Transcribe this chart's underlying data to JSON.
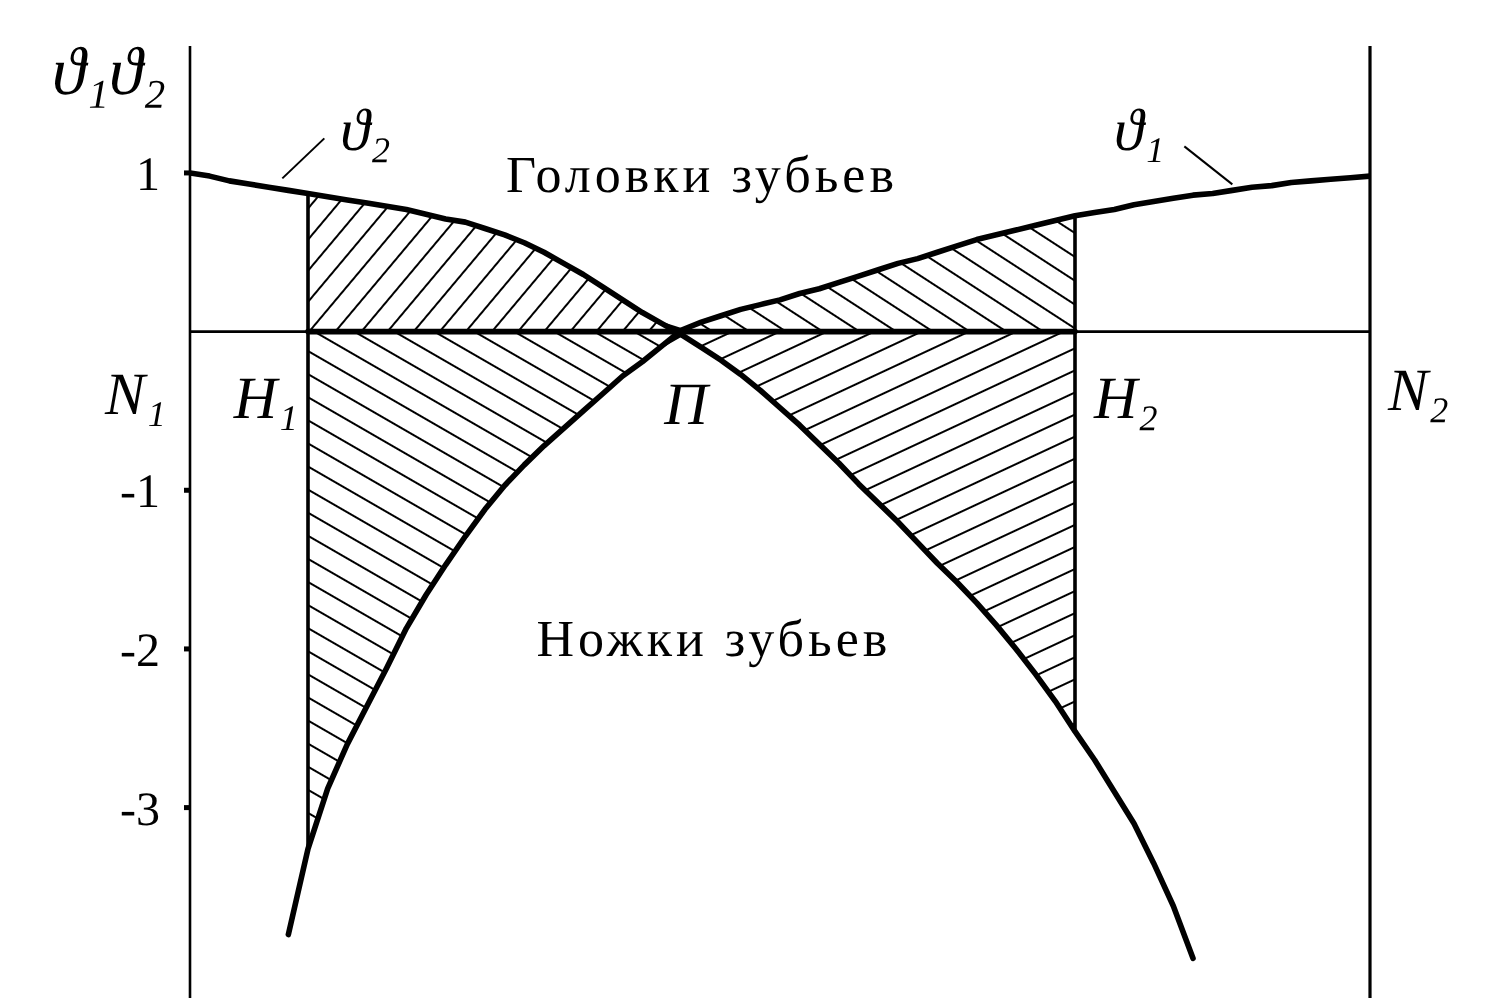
{
  "chart_data": {
    "type": "line",
    "ylabel": "ϑ₁ϑ₂",
    "categories": [
      null,
      null,
      null,
      null,
      null,
      null,
      null,
      null,
      null,
      null,
      null,
      null,
      null,
      null,
      null,
      null,
      null,
      null,
      null,
      null,
      null,
      null,
      null,
      null,
      null,
      null,
      null,
      null,
      null,
      null,
      null,
      null,
      null,
      null,
      null,
      null,
      null,
      null,
      null,
      null,
      null,
      null,
      null,
      null,
      null,
      null,
      null,
      null,
      null,
      null,
      null,
      null,
      null,
      null,
      null,
      null,
      null,
      null,
      null,
      null,
      null
    ],
    "series": [
      {
        "name": "ϑ₂",
        "color": "#000000",
        "values": [
          1.0,
          0.98,
          0.95,
          0.93,
          0.91,
          0.89,
          0.87,
          0.85,
          0.83,
          0.81,
          0.79,
          0.77,
          0.74,
          0.71,
          0.69,
          0.65,
          0.61,
          0.56,
          0.5,
          0.43,
          0.36,
          0.28,
          0.2,
          0.12,
          0.05,
          -0.02,
          -0.1,
          -0.18,
          -0.27,
          -0.37,
          -0.48,
          -0.59,
          -0.71,
          -0.83,
          -0.96,
          -1.08,
          -1.2,
          -1.33,
          -1.46,
          -1.58,
          -1.71,
          -1.85,
          -2.0,
          -2.16,
          -2.33,
          -2.52,
          -2.7,
          -2.9,
          -3.1,
          -3.35,
          -3.62,
          -3.95,
          null,
          null,
          null,
          null,
          null,
          null,
          null,
          null,
          null
        ]
      },
      {
        "name": "ϑ₁",
        "color": "#000000",
        "values": [
          null,
          null,
          null,
          null,
          null,
          -3.8,
          -3.26,
          -2.88,
          -2.6,
          -2.36,
          -2.12,
          -1.87,
          -1.66,
          -1.47,
          -1.29,
          -1.12,
          -0.97,
          -0.84,
          -0.72,
          -0.61,
          -0.5,
          -0.39,
          -0.28,
          -0.19,
          -0.09,
          0.01,
          0.06,
          0.1,
          0.14,
          0.17,
          0.2,
          0.24,
          0.27,
          0.31,
          0.35,
          0.39,
          0.43,
          0.46,
          0.5,
          0.54,
          0.58,
          0.61,
          0.64,
          0.67,
          0.7,
          0.73,
          0.75,
          0.77,
          0.8,
          0.82,
          0.84,
          0.86,
          0.87,
          0.89,
          0.91,
          0.92,
          0.94,
          0.95,
          0.96,
          0.97,
          0.98
        ]
      },
      {
        "color": "#000000",
        "values": [
          null,
          null,
          null,
          null,
          null,
          null,
          0,
          0,
          0,
          0,
          0,
          0,
          0,
          0,
          0,
          0,
          0,
          0,
          0,
          0,
          0,
          0,
          0,
          0,
          0,
          0,
          0,
          0,
          0,
          0,
          0,
          0,
          0,
          0,
          0,
          0,
          0,
          0,
          0,
          0,
          0,
          0,
          0,
          0,
          0,
          0,
          null,
          null,
          null,
          null,
          null,
          null,
          null,
          null,
          null,
          null,
          null,
          null,
          null,
          null,
          null
        ]
      }
    ],
    "ylim": [
      -4.2,
      1.8
    ],
    "yticks": [
      1,
      -1,
      -2,
      -3
    ],
    "tick_labels": "y",
    "ref_lines": [
      {
        "axis": "y",
        "value": 0
      }
    ],
    "annotations": [
      "Головки зубьев",
      "Ножки зубьев",
      "N₁",
      "H₁",
      "П",
      "H₂",
      "N₂"
    ]
  }
}
